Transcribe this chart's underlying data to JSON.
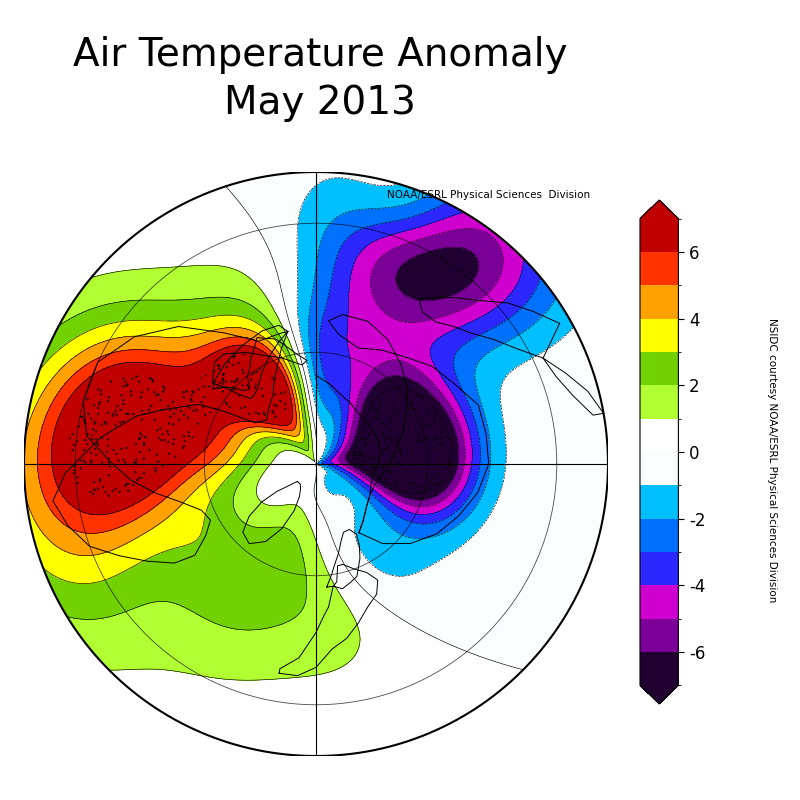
{
  "title_line1": "Air Temperature Anomaly",
  "title_line2": "May 2013",
  "title_fontsize": 28,
  "colorbar_label": "NSIDC courtesy NOAA/ESRL Physical Sciences Division",
  "noaa_label": "NOAA/ESRL Physical Sciences  Division",
  "levels": [
    -7,
    -6,
    -5,
    -4,
    -3,
    -2,
    -1,
    0,
    1,
    2,
    3,
    4,
    5,
    6,
    7
  ],
  "colorbar_ticks": [
    -6,
    -4,
    -2,
    0,
    2,
    4,
    6
  ],
  "colors": [
    "#200030",
    "#7b0098",
    "#d000d0",
    "#2828ff",
    "#0070ff",
    "#00c0ff",
    "#ffffff",
    "#ffffff",
    "#b0ff30",
    "#70d000",
    "#ffff00",
    "#ffa000",
    "#ff3000",
    "#c00000"
  ],
  "background_color": "#ffffff",
  "fig_width": 8.0,
  "fig_height": 8.0,
  "dpi": 100
}
